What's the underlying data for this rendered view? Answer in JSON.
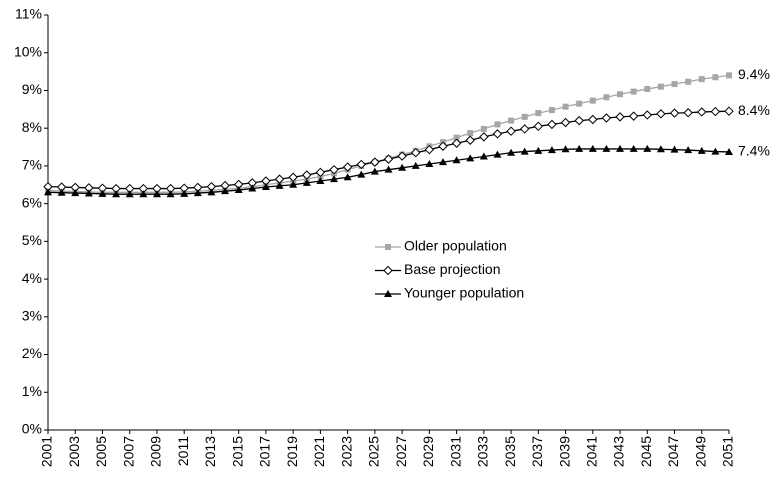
{
  "chart_data": {
    "type": "line",
    "x": [
      2001,
      2002,
      2003,
      2004,
      2005,
      2006,
      2007,
      2008,
      2009,
      2010,
      2011,
      2012,
      2013,
      2014,
      2015,
      2016,
      2017,
      2018,
      2019,
      2020,
      2021,
      2022,
      2023,
      2024,
      2025,
      2026,
      2027,
      2028,
      2029,
      2030,
      2031,
      2032,
      2033,
      2034,
      2035,
      2036,
      2037,
      2038,
      2039,
      2040,
      2041,
      2042,
      2043,
      2044,
      2045,
      2046,
      2047,
      2048,
      2049,
      2050,
      2051
    ],
    "xlim": [
      2001,
      2051
    ],
    "xticks": [
      2001,
      2003,
      2005,
      2007,
      2009,
      2011,
      2013,
      2015,
      2017,
      2019,
      2021,
      2023,
      2025,
      2027,
      2029,
      2031,
      2033,
      2035,
      2037,
      2039,
      2041,
      2043,
      2045,
      2047,
      2049,
      2051
    ],
    "ylim": [
      0,
      11
    ],
    "yticks": [
      {
        "value": 0,
        "label": "0%"
      },
      {
        "value": 1,
        "label": "1%"
      },
      {
        "value": 2,
        "label": "2%"
      },
      {
        "value": 3,
        "label": "3%"
      },
      {
        "value": 4,
        "label": "4%"
      },
      {
        "value": 5,
        "label": "5%"
      },
      {
        "value": 6,
        "label": "6%"
      },
      {
        "value": 7,
        "label": "7%"
      },
      {
        "value": 8,
        "label": "8%"
      },
      {
        "value": 9,
        "label": "9%"
      },
      {
        "value": 10,
        "label": "10%"
      },
      {
        "value": 11,
        "label": "11%"
      }
    ],
    "grid": false,
    "series": [
      {
        "name": "Older population",
        "color": "#a6a6a6",
        "marker": "square",
        "end_label": "9.4%",
        "values": [
          6.35,
          6.33,
          6.32,
          6.31,
          6.3,
          6.3,
          6.3,
          6.3,
          6.3,
          6.3,
          6.31,
          6.33,
          6.35,
          6.38,
          6.4,
          6.45,
          6.5,
          6.55,
          6.6,
          6.65,
          6.72,
          6.8,
          6.9,
          7.0,
          7.1,
          7.2,
          7.3,
          7.4,
          7.52,
          7.63,
          7.75,
          7.87,
          7.98,
          8.1,
          8.2,
          8.3,
          8.4,
          8.48,
          8.57,
          8.65,
          8.73,
          8.82,
          8.9,
          8.97,
          9.04,
          9.1,
          9.17,
          9.23,
          9.3,
          9.35,
          9.4
        ]
      },
      {
        "name": "Base projection",
        "color": "#000000",
        "marker": "diamond",
        "end_label": "8.4%",
        "values": [
          6.45,
          6.44,
          6.43,
          6.42,
          6.41,
          6.4,
          6.4,
          6.4,
          6.4,
          6.4,
          6.41,
          6.43,
          6.45,
          6.48,
          6.51,
          6.55,
          6.6,
          6.65,
          6.7,
          6.76,
          6.83,
          6.9,
          6.97,
          7.04,
          7.1,
          7.18,
          7.26,
          7.35,
          7.43,
          7.52,
          7.6,
          7.68,
          7.77,
          7.85,
          7.92,
          7.98,
          8.05,
          8.1,
          8.15,
          8.2,
          8.23,
          8.27,
          8.3,
          8.32,
          8.35,
          8.38,
          8.4,
          8.41,
          8.43,
          8.44,
          8.45
        ]
      },
      {
        "name": "Younger population",
        "color": "#000000",
        "marker": "triangle",
        "end_label": "7.4%",
        "values": [
          6.3,
          6.29,
          6.28,
          6.27,
          6.26,
          6.25,
          6.25,
          6.25,
          6.25,
          6.25,
          6.26,
          6.28,
          6.3,
          6.33,
          6.36,
          6.4,
          6.44,
          6.47,
          6.5,
          6.55,
          6.6,
          6.65,
          6.7,
          6.77,
          6.85,
          6.9,
          6.95,
          7.0,
          7.05,
          7.1,
          7.15,
          7.2,
          7.25,
          7.3,
          7.35,
          7.38,
          7.4,
          7.42,
          7.44,
          7.45,
          7.45,
          7.45,
          7.45,
          7.45,
          7.45,
          7.44,
          7.43,
          7.42,
          7.4,
          7.38,
          7.37
        ]
      }
    ]
  }
}
